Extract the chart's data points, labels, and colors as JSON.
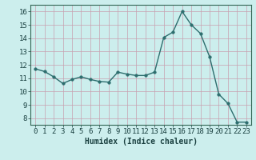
{
  "x": [
    0,
    1,
    2,
    3,
    4,
    5,
    6,
    7,
    8,
    9,
    10,
    11,
    12,
    13,
    14,
    15,
    16,
    17,
    18,
    19,
    20,
    21,
    22,
    23
  ],
  "y": [
    11.7,
    11.5,
    11.1,
    10.6,
    10.9,
    11.1,
    10.9,
    10.75,
    10.7,
    11.45,
    11.3,
    11.2,
    11.2,
    11.45,
    14.05,
    14.45,
    16.0,
    15.0,
    14.35,
    12.6,
    9.8,
    9.1,
    7.7,
    7.7
  ],
  "line_color": "#2d6e6e",
  "marker": "o",
  "markersize": 2.5,
  "linewidth": 1.0,
  "xlabel": "Humidex (Indice chaleur)",
  "ylim": [
    7.5,
    16.5
  ],
  "xlim": [
    -0.5,
    23.5
  ],
  "yticks": [
    8,
    9,
    10,
    11,
    12,
    13,
    14,
    15,
    16
  ],
  "xticks": [
    0,
    1,
    2,
    3,
    4,
    5,
    6,
    7,
    8,
    9,
    10,
    11,
    12,
    13,
    14,
    15,
    16,
    17,
    18,
    19,
    20,
    21,
    22,
    23
  ],
  "bg_color": "#cceeed",
  "grid_color": "#c8a0b0",
  "grid_linewidth": 0.5,
  "xlabel_fontsize": 7,
  "tick_fontsize": 6.5,
  "spine_color": "#336655"
}
